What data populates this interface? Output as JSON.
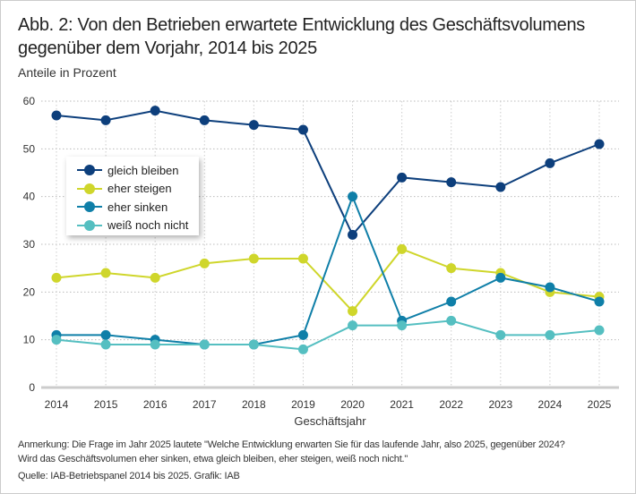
{
  "title": "Abb. 2: Von den Betrieben erwartete Entwicklung des Geschäftsvolumens gegenüber dem Vorjahr, 2014 bis 2025",
  "subtitle": "Anteile in Prozent",
  "notes": [
    "Anmerkung: Die Frage im Jahr 2025 lautete \"Welche Entwicklung erwarten Sie für das laufende Jahr, also 2025, gegenüber 2024?",
    "Wird das Geschäftsvolumen eher sinken, etwa gleich bleiben, eher steigen, weiß noch nicht.\"",
    "Quelle: IAB-Betriebspanel 2014 bis 2025. Grafik: IAB"
  ],
  "chart_data": {
    "type": "line",
    "title": "Abb. 2: Von den Betrieben erwartete Entwicklung des Geschäftsvolumens gegenüber dem Vorjahr, 2014 bis 2025",
    "xlabel": "Geschäftsjahr",
    "ylabel": "Anteile in Prozent",
    "x": [
      "2014",
      "2015",
      "2016",
      "2017",
      "2018",
      "2019",
      "2020",
      "2021",
      "2022",
      "2023",
      "2024",
      "2025"
    ],
    "ylim": [
      0,
      60
    ],
    "yticks": [
      0,
      10,
      20,
      30,
      40,
      50,
      60
    ],
    "grid": true,
    "legend_placement": "left",
    "series": [
      {
        "name": "gleich bleiben",
        "color": "#0d3f7c",
        "values": [
          57,
          56,
          58,
          56,
          55,
          54,
          32,
          44,
          43,
          42,
          47,
          51
        ]
      },
      {
        "name": "eher steigen",
        "color": "#cfd62b",
        "values": [
          23,
          24,
          23,
          26,
          27,
          27,
          16,
          29,
          25,
          24,
          20,
          19
        ]
      },
      {
        "name": "eher sinken",
        "color": "#0f7fa8",
        "values": [
          11,
          11,
          10,
          9,
          9,
          11,
          40,
          14,
          18,
          23,
          21,
          18
        ]
      },
      {
        "name": "weiß noch nicht",
        "color": "#55bfc1",
        "values": [
          10,
          9,
          9,
          9,
          9,
          8,
          13,
          13,
          14,
          11,
          11,
          12
        ]
      }
    ]
  }
}
